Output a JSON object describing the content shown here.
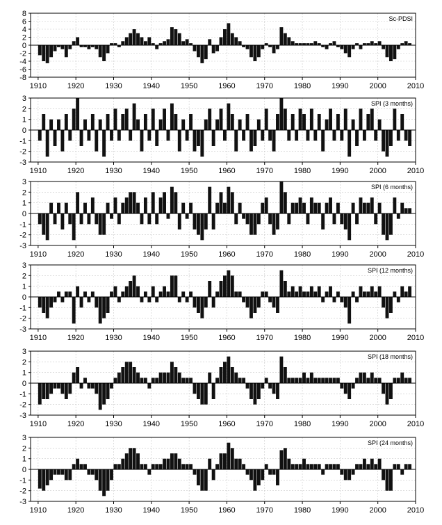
{
  "chart_data": [
    {
      "type": "bar",
      "title": "Sc-PDSI",
      "x_range": [
        1908,
        2010
      ],
      "ylim": [
        -8,
        8
      ],
      "yticks": [
        8,
        6,
        4,
        2,
        0,
        -2,
        -4,
        -6,
        -8
      ],
      "xticks": [
        1910,
        1920,
        1930,
        1940,
        1950,
        1960,
        1970,
        1980,
        1990,
        2000,
        2010
      ],
      "grid": true,
      "x": [
        1910,
        1911,
        1912,
        1913,
        1914,
        1915,
        1916,
        1917,
        1918,
        1919,
        1920,
        1921,
        1922,
        1923,
        1924,
        1925,
        1926,
        1927,
        1928,
        1929,
        1930,
        1931,
        1932,
        1933,
        1934,
        1935,
        1936,
        1937,
        1938,
        1939,
        1940,
        1941,
        1942,
        1943,
        1944,
        1945,
        1946,
        1947,
        1948,
        1949,
        1950,
        1951,
        1952,
        1953,
        1954,
        1955,
        1956,
        1957,
        1958,
        1959,
        1960,
        1961,
        1962,
        1963,
        1964,
        1965,
        1966,
        1967,
        1968,
        1969,
        1970,
        1971,
        1972,
        1973,
        1974,
        1975,
        1976,
        1977,
        1978,
        1979,
        1980,
        1981,
        1982,
        1983,
        1984,
        1985,
        1986,
        1987,
        1988,
        1989,
        1990,
        1991,
        1992,
        1993,
        1994,
        1995,
        1996,
        1997,
        1998,
        1999,
        2000,
        2001,
        2002,
        2003,
        2004,
        2005,
        2006,
        2007,
        2008
      ],
      "values": [
        -2.5,
        -4,
        -4.5,
        -3,
        -1.5,
        -0.5,
        -1,
        -3,
        -1,
        1,
        2,
        -0.5,
        -0.5,
        -1,
        -0.5,
        -1,
        -3,
        -4,
        -2,
        0.5,
        0.5,
        -0.5,
        1,
        2,
        3,
        4,
        3,
        2,
        1,
        2,
        0.5,
        -1,
        0.5,
        1,
        1.5,
        4.5,
        4,
        3,
        1,
        1.5,
        0.5,
        -1.5,
        -3,
        -4.5,
        -3.5,
        1.5,
        -2,
        -1.5,
        2,
        4,
        5.5,
        3,
        2,
        1,
        -0.5,
        -1,
        -3,
        -4,
        -3,
        -1,
        0.5,
        -0.5,
        -2,
        -1,
        4.5,
        3,
        2,
        1,
        0.5,
        0.5,
        0.5,
        0.5,
        0.5,
        1,
        0.5,
        -0.5,
        -1,
        0.5,
        1,
        -0.5,
        -1,
        -2,
        -3,
        -1,
        0.5,
        -1,
        0.5,
        0.5,
        1,
        0.5,
        1,
        -1,
        -3,
        -4,
        -3.5,
        -1,
        0.5,
        1,
        0.5
      ]
    },
    {
      "type": "bar",
      "title": "SPI (3 months)",
      "x_range": [
        1908,
        2010
      ],
      "ylim": [
        -3,
        3
      ],
      "yticks": [
        3,
        2,
        1,
        0,
        -1,
        -2,
        -3
      ],
      "xticks": [
        1910,
        1920,
        1930,
        1940,
        1950,
        1960,
        1970,
        1980,
        1990,
        2000,
        2010
      ],
      "grid": true,
      "x": [
        1910,
        1911,
        1912,
        1913,
        1914,
        1915,
        1916,
        1917,
        1918,
        1919,
        1920,
        1921,
        1922,
        1923,
        1924,
        1925,
        1926,
        1927,
        1928,
        1929,
        1930,
        1931,
        1932,
        1933,
        1934,
        1935,
        1936,
        1937,
        1938,
        1939,
        1940,
        1941,
        1942,
        1943,
        1944,
        1945,
        1946,
        1947,
        1948,
        1949,
        1950,
        1951,
        1952,
        1953,
        1954,
        1955,
        1956,
        1957,
        1958,
        1959,
        1960,
        1961,
        1962,
        1963,
        1964,
        1965,
        1966,
        1967,
        1968,
        1969,
        1970,
        1971,
        1972,
        1973,
        1974,
        1975,
        1976,
        1977,
        1978,
        1979,
        1980,
        1981,
        1982,
        1983,
        1984,
        1985,
        1986,
        1987,
        1988,
        1989,
        1990,
        1991,
        1992,
        1993,
        1994,
        1995,
        1996,
        1997,
        1998,
        1999,
        2000,
        2001,
        2002,
        2003,
        2004,
        2005,
        2006,
        2007,
        2008
      ],
      "values": [
        -1,
        1.5,
        -2.5,
        1,
        -1.5,
        1,
        -2,
        1.5,
        -1,
        2,
        3,
        -1.5,
        1,
        -1,
        1.5,
        -2,
        1,
        -2.5,
        1.5,
        -1,
        2,
        -1,
        1.5,
        2,
        -1,
        2.5,
        1,
        -2,
        1.5,
        -1,
        2,
        -1.5,
        1,
        2,
        -1,
        2.5,
        1.5,
        -2,
        1,
        -1,
        1.5,
        -2,
        -1.5,
        -2.5,
        1,
        2,
        -1.5,
        1,
        2,
        -1,
        2.5,
        1.5,
        -2,
        1,
        -1,
        1.5,
        -2,
        -1.5,
        1,
        -1,
        2,
        -1,
        -2,
        1.5,
        3,
        2,
        -1,
        1.5,
        -1,
        2,
        1.5,
        -1,
        2,
        -1,
        1.5,
        -2,
        1,
        2,
        -1,
        1.5,
        -1,
        2,
        -2.5,
        1,
        -1.5,
        2,
        -1,
        1.5,
        2,
        -1,
        1,
        -2,
        -2.5,
        -1.5,
        2,
        -1,
        1.5,
        -1,
        -1.5
      ]
    },
    {
      "type": "bar",
      "title": "SPI (6 months)",
      "x_range": [
        1908,
        2010
      ],
      "ylim": [
        -3,
        3
      ],
      "yticks": [
        3,
        2,
        1,
        0,
        -1,
        -2,
        -3
      ],
      "xticks": [
        1910,
        1920,
        1930,
        1940,
        1950,
        1960,
        1970,
        1980,
        1990,
        2000,
        2010
      ],
      "grid": true,
      "x": [
        1910,
        1911,
        1912,
        1913,
        1914,
        1915,
        1916,
        1917,
        1918,
        1919,
        1920,
        1921,
        1922,
        1923,
        1924,
        1925,
        1926,
        1927,
        1928,
        1929,
        1930,
        1931,
        1932,
        1933,
        1934,
        1935,
        1936,
        1937,
        1938,
        1939,
        1940,
        1941,
        1942,
        1943,
        1944,
        1945,
        1946,
        1947,
        1948,
        1949,
        1950,
        1951,
        1952,
        1953,
        1954,
        1955,
        1956,
        1957,
        1958,
        1959,
        1960,
        1961,
        1962,
        1963,
        1964,
        1965,
        1966,
        1967,
        1968,
        1969,
        1970,
        1971,
        1972,
        1973,
        1974,
        1975,
        1976,
        1977,
        1978,
        1979,
        1980,
        1981,
        1982,
        1983,
        1984,
        1985,
        1986,
        1987,
        1988,
        1989,
        1990,
        1991,
        1992,
        1993,
        1994,
        1995,
        1996,
        1997,
        1998,
        1999,
        2000,
        2001,
        2002,
        2003,
        2004,
        2005,
        2006,
        2007,
        2008
      ],
      "values": [
        -1,
        -2,
        -2.5,
        1,
        -1,
        1,
        -1.5,
        1,
        -1,
        -2.5,
        2,
        -1,
        1,
        -1,
        1.5,
        -1,
        -2,
        -2,
        1,
        -0.5,
        1.5,
        -1,
        1,
        1.5,
        2,
        2,
        1,
        -1,
        1.5,
        -1,
        2,
        -1,
        1.5,
        2,
        -0.5,
        2.5,
        2,
        -1.5,
        1,
        -0.5,
        1,
        -1.5,
        -2,
        -2.5,
        -1.5,
        2.5,
        -1.5,
        1,
        2,
        1,
        2.5,
        2,
        -1,
        1,
        -0.5,
        -1,
        -2,
        -2,
        -1,
        1,
        1.5,
        -1,
        -2,
        -1.5,
        3,
        2,
        -1,
        1,
        1,
        1.5,
        1,
        -1,
        1.5,
        1,
        1,
        -1.5,
        1,
        1.5,
        -1,
        1,
        -1,
        -1.5,
        -2.5,
        1,
        -1,
        1.5,
        1,
        1,
        1.5,
        -1,
        1,
        -2,
        -2.5,
        -2,
        1.5,
        -0.5,
        1,
        0.5,
        0.5
      ]
    },
    {
      "type": "bar",
      "title": "SPI (12 months)",
      "x_range": [
        1908,
        2010
      ],
      "ylim": [
        -3,
        3
      ],
      "yticks": [
        3,
        2,
        1,
        0,
        -1,
        -2,
        -3
      ],
      "xticks": [
        1910,
        1920,
        1930,
        1940,
        1950,
        1960,
        1970,
        1980,
        1990,
        2000,
        2010
      ],
      "grid": true,
      "x": [
        1910,
        1911,
        1912,
        1913,
        1914,
        1915,
        1916,
        1917,
        1918,
        1919,
        1920,
        1921,
        1922,
        1923,
        1924,
        1925,
        1926,
        1927,
        1928,
        1929,
        1930,
        1931,
        1932,
        1933,
        1934,
        1935,
        1936,
        1937,
        1938,
        1939,
        1940,
        1941,
        1942,
        1943,
        1944,
        1945,
        1946,
        1947,
        1948,
        1949,
        1950,
        1951,
        1952,
        1953,
        1954,
        1955,
        1956,
        1957,
        1958,
        1959,
        1960,
        1961,
        1962,
        1963,
        1964,
        1965,
        1966,
        1967,
        1968,
        1969,
        1970,
        1971,
        1972,
        1973,
        1974,
        1975,
        1976,
        1977,
        1978,
        1979,
        1980,
        1981,
        1982,
        1983,
        1984,
        1985,
        1986,
        1987,
        1988,
        1989,
        1990,
        1991,
        1992,
        1993,
        1994,
        1995,
        1996,
        1997,
        1998,
        1999,
        2000,
        2001,
        2002,
        2003,
        2004,
        2005,
        2006,
        2007,
        2008
      ],
      "values": [
        -1,
        -1.5,
        -2,
        -1,
        -0.5,
        0.5,
        -0.5,
        0.5,
        0.5,
        -2.5,
        1,
        -1,
        0.5,
        -0.5,
        0.5,
        -1,
        -2.5,
        -2,
        -1.5,
        0.5,
        1,
        -0.5,
        0.5,
        1,
        1.5,
        2,
        1,
        -0.5,
        0.5,
        -0.5,
        1,
        -0.5,
        0.5,
        1,
        0.5,
        2,
        2,
        -0.5,
        0.5,
        -0.5,
        0.5,
        -1,
        -1.5,
        -2,
        -1,
        1.5,
        -1,
        0.5,
        1.5,
        2,
        2.5,
        2,
        0.5,
        0.5,
        -0.5,
        -1,
        -2,
        -1.5,
        -1,
        0.5,
        0.5,
        -0.5,
        -1,
        -1.5,
        2.5,
        1.5,
        0.5,
        1,
        0.5,
        1,
        0.5,
        0.5,
        1,
        0.5,
        1,
        -0.5,
        0.5,
        1,
        -0.5,
        0.5,
        -0.5,
        -1,
        -2.5,
        0.5,
        -0.5,
        1,
        0.5,
        0.5,
        1,
        0.5,
        1,
        -1,
        -2,
        -1.5,
        0.5,
        -0.5,
        1,
        0.5,
        1
      ]
    },
    {
      "type": "bar",
      "title": "SPI (18 months)",
      "x_range": [
        1908,
        2010
      ],
      "ylim": [
        -3,
        3
      ],
      "yticks": [
        3,
        2,
        1,
        0,
        -1,
        -2,
        -3
      ],
      "xticks": [
        1910,
        1920,
        1930,
        1940,
        1950,
        1960,
        1970,
        1980,
        1990,
        2000,
        2010
      ],
      "grid": true,
      "x": [
        1910,
        1911,
        1912,
        1913,
        1914,
        1915,
        1916,
        1917,
        1918,
        1919,
        1920,
        1921,
        1922,
        1923,
        1924,
        1925,
        1926,
        1927,
        1928,
        1929,
        1930,
        1931,
        1932,
        1933,
        1934,
        1935,
        1936,
        1937,
        1938,
        1939,
        1940,
        1941,
        1942,
        1943,
        1944,
        1945,
        1946,
        1947,
        1948,
        1949,
        1950,
        1951,
        1952,
        1953,
        1954,
        1955,
        1956,
        1957,
        1958,
        1959,
        1960,
        1961,
        1962,
        1963,
        1964,
        1965,
        1966,
        1967,
        1968,
        1969,
        1970,
        1971,
        1972,
        1973,
        1974,
        1975,
        1976,
        1977,
        1978,
        1979,
        1980,
        1981,
        1982,
        1983,
        1984,
        1985,
        1986,
        1987,
        1988,
        1989,
        1990,
        1991,
        1992,
        1993,
        1994,
        1995,
        1996,
        1997,
        1998,
        1999,
        2000,
        2001,
        2002,
        2003,
        2004,
        2005,
        2006,
        2007,
        2008
      ],
      "values": [
        -2,
        -1.5,
        -1.5,
        -1,
        -0.5,
        -0.5,
        -1,
        -1.5,
        -1,
        1,
        1.5,
        -0.5,
        0.5,
        -0.5,
        -0.5,
        -1,
        -2.5,
        -2,
        -1.5,
        -0.5,
        0.5,
        1,
        1.5,
        2,
        2,
        1.5,
        1,
        0.5,
        0.5,
        -0.5,
        0.5,
        0.5,
        1,
        1,
        1,
        2,
        1.5,
        1,
        0.5,
        0.5,
        0.5,
        -1,
        -1.5,
        -2,
        -2,
        1,
        -1.5,
        0.5,
        1.5,
        2,
        2.5,
        1.5,
        1,
        0.5,
        0.5,
        -0.5,
        -1.5,
        -2,
        -1.5,
        -0.5,
        0.5,
        -0.5,
        -1,
        -1.5,
        2.5,
        1.5,
        0.5,
        0.5,
        0.5,
        0.5,
        1,
        0.5,
        1,
        0.5,
        0.5,
        0.5,
        0.5,
        0.5,
        0.5,
        0.5,
        -0.5,
        -1,
        -1.5,
        -0.5,
        0.5,
        1,
        1,
        0.5,
        1,
        0.5,
        0.5,
        -1,
        -2,
        -1.5,
        0.5,
        0.5,
        1,
        0.5,
        0.5
      ]
    },
    {
      "type": "bar",
      "title": "SPI (24 months)",
      "x_range": [
        1908,
        2010
      ],
      "ylim": [
        -3,
        3
      ],
      "yticks": [
        3,
        2,
        1,
        0,
        -1,
        -2,
        -3
      ],
      "xticks": [
        1910,
        1920,
        1930,
        1940,
        1950,
        1960,
        1970,
        1980,
        1990,
        2000,
        2010
      ],
      "grid": true,
      "x": [
        1910,
        1911,
        1912,
        1913,
        1914,
        1915,
        1916,
        1917,
        1918,
        1919,
        1920,
        1921,
        1922,
        1923,
        1924,
        1925,
        1926,
        1927,
        1928,
        1929,
        1930,
        1931,
        1932,
        1933,
        1934,
        1935,
        1936,
        1937,
        1938,
        1939,
        1940,
        1941,
        1942,
        1943,
        1944,
        1945,
        1946,
        1947,
        1948,
        1949,
        1950,
        1951,
        1952,
        1953,
        1954,
        1955,
        1956,
        1957,
        1958,
        1959,
        1960,
        1961,
        1962,
        1963,
        1964,
        1965,
        1966,
        1967,
        1968,
        1969,
        1970,
        1971,
        1972,
        1973,
        1974,
        1975,
        1976,
        1977,
        1978,
        1979,
        1980,
        1981,
        1982,
        1983,
        1984,
        1985,
        1986,
        1987,
        1988,
        1989,
        1990,
        1991,
        1992,
        1993,
        1994,
        1995,
        1996,
        1997,
        1998,
        1999,
        2000,
        2001,
        2002,
        2003,
        2004,
        2005,
        2006,
        2007,
        2008
      ],
      "values": [
        -1.8,
        -2,
        -1.5,
        -1,
        -0.5,
        -0.5,
        -0.5,
        -1,
        -1,
        0.5,
        1,
        0.5,
        0.5,
        -0.5,
        -0.5,
        -1,
        -2,
        -2.5,
        -2,
        -1,
        0.5,
        0.5,
        1,
        1.5,
        2,
        2,
        1.5,
        0.5,
        0.5,
        -0.5,
        0.5,
        0.5,
        0.5,
        1,
        1,
        1.5,
        1.5,
        1,
        0.5,
        0.5,
        0.5,
        -0.5,
        -1.5,
        -2,
        -2,
        1,
        -1,
        0.5,
        1.5,
        1.5,
        2.5,
        2,
        1,
        1,
        0.5,
        -0.5,
        -1,
        -2,
        -1.5,
        -1,
        0.5,
        -0.5,
        -0.5,
        -1.5,
        1.8,
        2,
        1,
        0.5,
        0.5,
        0.5,
        1,
        0.5,
        0.5,
        0.5,
        0.5,
        -0.5,
        0.5,
        0.5,
        0.5,
        0.5,
        -0.5,
        -1,
        -1,
        -0.5,
        0.5,
        0.5,
        1,
        0.5,
        1,
        0.5,
        1,
        -1,
        -2,
        -2,
        0.5,
        0.5,
        -0.5,
        0.5,
        0.5
      ]
    }
  ]
}
